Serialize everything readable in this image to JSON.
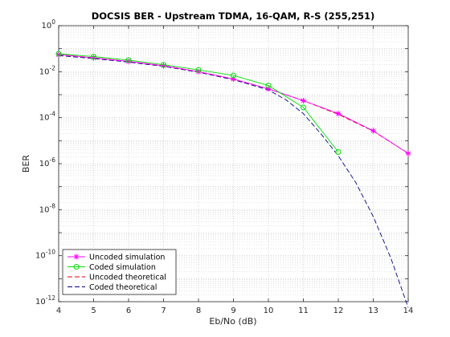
{
  "chart_data": {
    "type": "line",
    "title": "DOCSIS BER - Upstream TDMA, 16-QAM, R-S (255,251)",
    "xlabel": "Eb/No (dB)",
    "ylabel": "BER",
    "xlim": [
      4,
      14
    ],
    "ylim_exponent": [
      -12,
      0
    ],
    "yscale": "log",
    "grid": true,
    "minor_grid": true,
    "legend_position": "bottom-left",
    "x_ticks": [
      "4",
      "5",
      "6",
      "7",
      "8",
      "9",
      "10",
      "11",
      "12",
      "13",
      "14"
    ],
    "y_tick_exponents": [
      0,
      -2,
      -4,
      -6,
      -8,
      -10,
      -12
    ],
    "series": [
      {
        "name": "Uncoded simulation",
        "color": "#ff00ff",
        "linestyle": "solid",
        "marker": "asterisk",
        "x": [
          4,
          5,
          6,
          7,
          8,
          9,
          10,
          11,
          12,
          13,
          14
        ],
        "y": [
          0.055,
          0.04,
          0.028,
          0.018,
          0.01,
          0.0048,
          0.0018,
          0.00055,
          0.00015,
          2.7e-05,
          2.8e-06
        ]
      },
      {
        "name": "Coded simulation",
        "color": "#00dd00",
        "linestyle": "solid",
        "marker": "circle",
        "x": [
          4,
          5,
          6,
          7,
          8,
          9,
          10,
          11,
          12
        ],
        "y": [
          0.06,
          0.045,
          0.032,
          0.02,
          0.012,
          0.0068,
          0.0025,
          0.00028,
          3.2e-06
        ]
      },
      {
        "name": "Uncoded theoretical",
        "color": "#e00000",
        "linestyle": "dashed",
        "marker": "none",
        "x": [
          4,
          5,
          6,
          7,
          8,
          9,
          10,
          11,
          12,
          13,
          14
        ],
        "y": [
          0.055,
          0.04,
          0.028,
          0.018,
          0.01,
          0.0048,
          0.0018,
          0.00055,
          0.00014,
          2.6e-05,
          2.8e-06
        ]
      },
      {
        "name": "Coded theoretical",
        "color": "#00008b",
        "linestyle": "dashed",
        "marker": "none",
        "x": [
          4,
          5,
          6,
          7,
          8,
          9,
          10,
          10.5,
          11,
          11.5,
          12,
          12.5,
          13,
          13.5,
          14
        ],
        "y": [
          0.05,
          0.037,
          0.026,
          0.017,
          0.0095,
          0.0045,
          0.0016,
          0.0006,
          0.00015,
          2e-05,
          2.2e-06,
          1.5e-07,
          5e-09,
          8e-11,
          5.5e-13
        ]
      }
    ]
  }
}
